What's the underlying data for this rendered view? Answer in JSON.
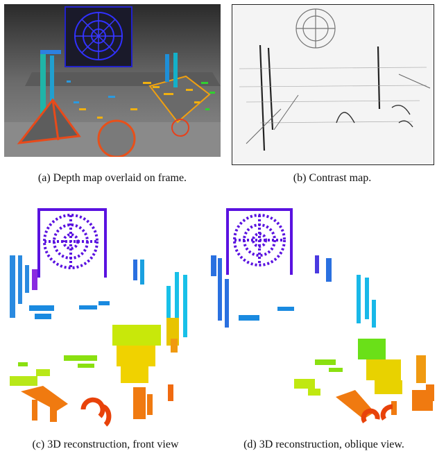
{
  "figure": {
    "panels": [
      {
        "id": "a",
        "caption": "(a) Depth map overlaid on frame."
      },
      {
        "id": "b",
        "caption": "(b) Contrast map."
      },
      {
        "id": "c",
        "caption": "(c) 3D reconstruction, front view"
      },
      {
        "id": "d",
        "caption": "(d) 3D reconstruction, oblique view."
      }
    ],
    "colors": {
      "near": "#e8420a",
      "mid": "#f2a20c",
      "yellow": "#e6e200",
      "green": "#6fe010",
      "cyan": "#12b5e0",
      "blue": "#2a55d8",
      "violet": "#5a12e0",
      "frame_bg": "#4a4a4a",
      "contrast_bg": "#f4f4f4"
    }
  }
}
